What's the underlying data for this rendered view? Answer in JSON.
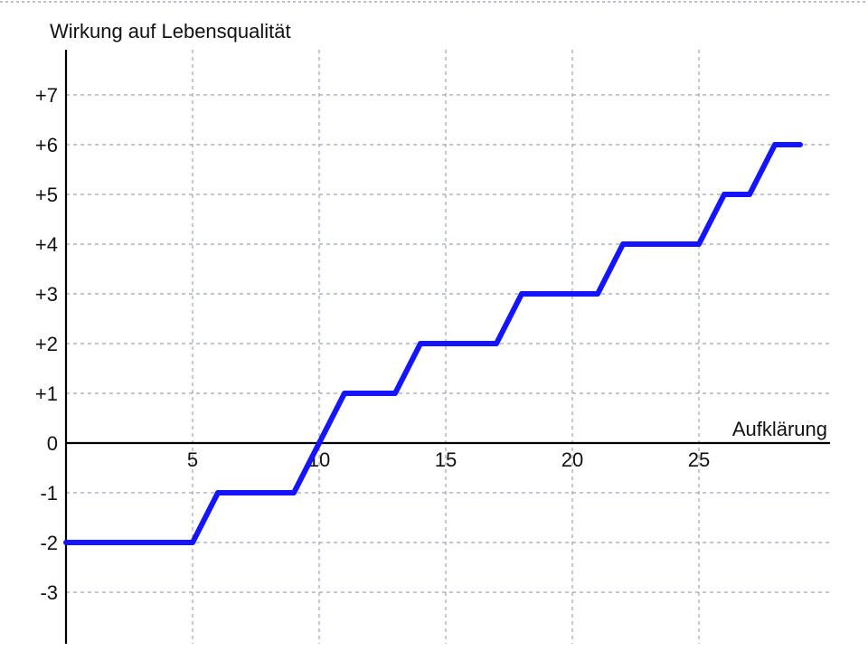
{
  "chart_data": {
    "type": "line",
    "ylabel": "Wirkung auf Lebensqualität",
    "xlabel": "Aufklärung",
    "xlim": [
      0,
      30
    ],
    "ylim": [
      -4,
      8
    ],
    "grid": true,
    "x_ticks": [
      5,
      10,
      15,
      20,
      25
    ],
    "x_tick_labels": [
      "5",
      "10",
      "15",
      "20",
      "25"
    ],
    "y_ticks": [
      7,
      6,
      5,
      4,
      3,
      2,
      1,
      0,
      -1,
      -2,
      -3
    ],
    "y_tick_labels": [
      "+7",
      "+6",
      "+5",
      "+4",
      "+3",
      "+2",
      "+1",
      "0",
      "-1",
      "-2",
      "-3"
    ],
    "series": [
      {
        "color": "#1414ff",
        "x": [
          0,
          5,
          6,
          9,
          11,
          13,
          14,
          17,
          18,
          21,
          22,
          25,
          26,
          27,
          28,
          29
        ],
        "y": [
          -2,
          -2,
          -1,
          -1,
          1,
          1,
          2,
          2,
          3,
          3,
          4,
          4,
          5,
          5,
          6,
          6
        ]
      }
    ]
  }
}
